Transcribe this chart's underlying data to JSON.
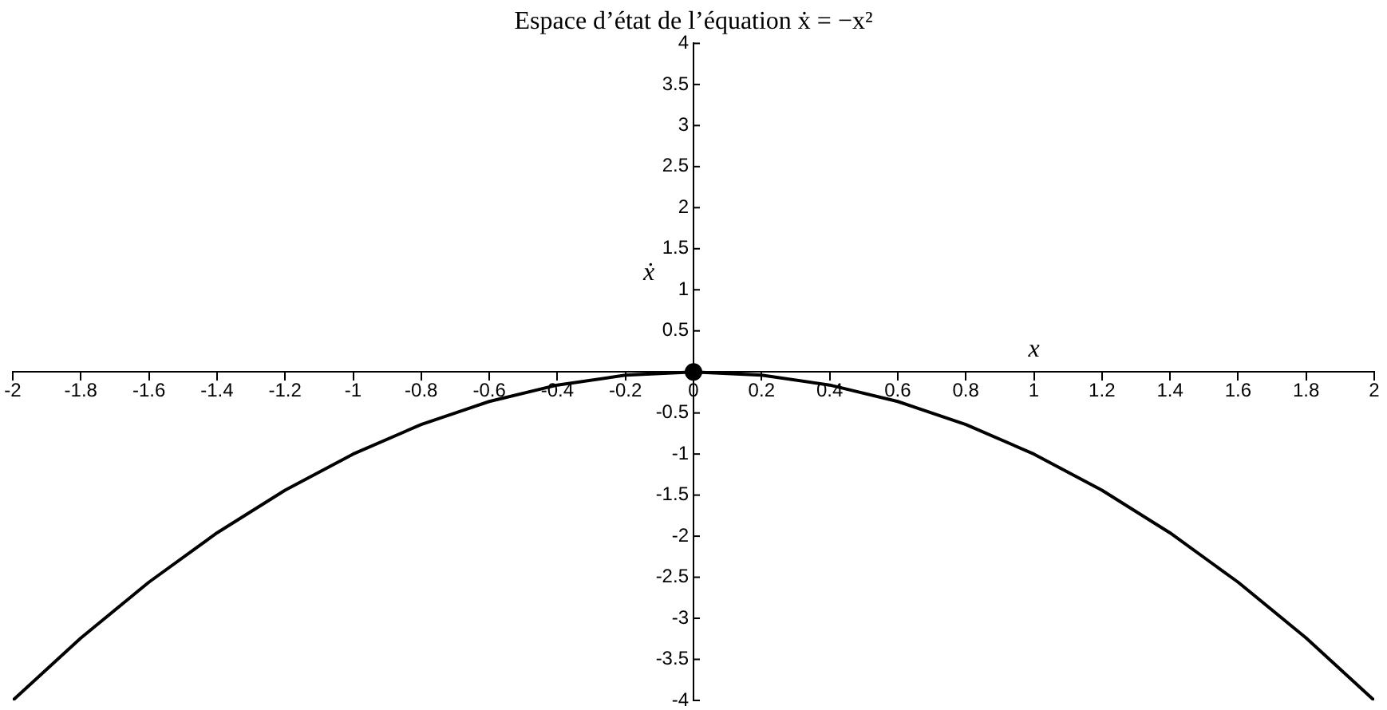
{
  "chart_data": {
    "type": "line",
    "title": "Espace d’état de l’équation ẋ = −x²",
    "xlabel": "x",
    "ylabel": "ẋ",
    "series": [
      {
        "color": "#000000",
        "x": [
          -2,
          -1.8,
          -1.6,
          -1.4,
          -1.2,
          -1,
          -0.8,
          -0.6,
          -0.4,
          -0.2,
          0,
          0.2,
          0.4,
          0.6,
          0.8,
          1,
          1.2,
          1.4,
          1.6,
          1.8,
          2
        ],
        "values": [
          -4,
          -3.24,
          -2.56,
          -1.96,
          -1.44,
          -1,
          -0.64,
          -0.36,
          -0.16,
          -0.04,
          0,
          -0.04,
          -0.16,
          -0.36,
          -0.64,
          -1,
          -1.44,
          -1.96,
          -2.56,
          -3.24,
          -4
        ]
      },
      {
        "type": "scatter",
        "color": "#000000",
        "marker": "circle",
        "x": [
          0
        ],
        "values": [
          0
        ]
      }
    ],
    "xlim": [
      -2,
      2
    ],
    "ylim": [
      -4,
      4
    ],
    "xticks": [
      -2,
      -1.8,
      -1.6,
      -1.4,
      -1.2,
      -1,
      -0.8,
      -0.6,
      -0.4,
      -0.2,
      0,
      0.2,
      0.4,
      0.6,
      0.8,
      1,
      1.2,
      1.4,
      1.6,
      1.8,
      2
    ],
    "yticks": [
      -4,
      -3.5,
      -3,
      -2.5,
      -2,
      -1.5,
      -1,
      -0.5,
      {
        "value": 0,
        "label": null
      },
      0.5,
      1,
      1.5,
      2,
      2.5,
      3,
      3.5,
      4
    ],
    "grid": false,
    "legend": false,
    "marker": "none",
    "line_style": "solid"
  }
}
